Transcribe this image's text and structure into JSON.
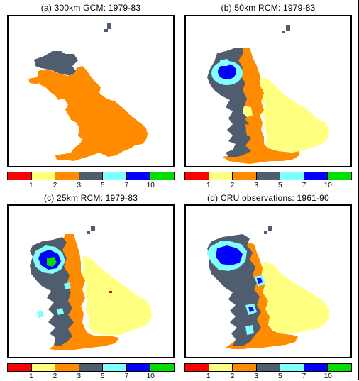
{
  "panels": [
    {
      "id": "a",
      "title": "(a) 300km GCM: 1979-83"
    },
    {
      "id": "b",
      "title": "(b) 50km RCM: 1979-83"
    },
    {
      "id": "c",
      "title": "(c) 25km RCM: 1979-83"
    },
    {
      "id": "d",
      "title": "(d) CRU observations: 1961-90"
    }
  ],
  "legend": {
    "colors": [
      "#ff0000",
      "#ffff80",
      "#ff8c00",
      "#4f5d6e",
      "#80ffff",
      "#0000ff",
      "#00e000"
    ],
    "tick_labels": [
      "1",
      "2",
      "3",
      "5",
      "7",
      "10"
    ]
  },
  "map_colors": {
    "class1": "#ffff80",
    "class2": "#ff8c00",
    "class3": "#4f5d6e",
    "class5": "#80ffff",
    "class7": "#0000ff",
    "class10": "#00e000"
  }
}
